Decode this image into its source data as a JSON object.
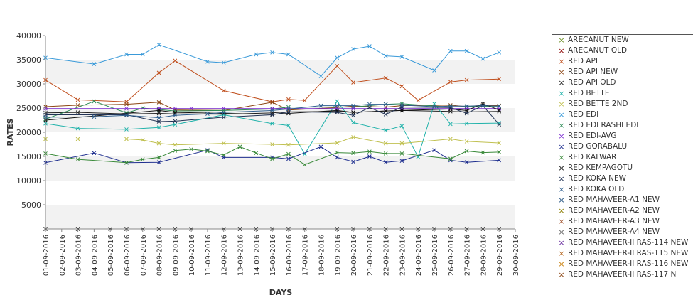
{
  "chart_data": {
    "type": "line",
    "xlabel": "DAYS",
    "ylabel": "RATES",
    "ylim": [
      0,
      40000
    ],
    "yticks": [
      5000,
      10000,
      15000,
      20000,
      25000,
      30000,
      35000,
      40000
    ],
    "x": [
      "01-09-2016",
      "02-09-2016",
      "03-09-2016",
      "04-09-2016",
      "05-09-2016",
      "06-09-2016",
      "07-09-2016",
      "08-09-2016",
      "09-09-2016",
      "10-09-2016",
      "11-09-2016",
      "12-09-2016",
      "13-09-2016",
      "14-09-2016",
      "15-09-2016",
      "16-09-2016",
      "17-09-2016",
      "18-09-2016",
      "19-09-2016",
      "20-09-2016",
      "21-09-2016",
      "22-09-2016",
      "23-09-2016",
      "24-09-2016",
      "25-09-2016",
      "26-09-2016",
      "27-09-2016",
      "28-09-2016",
      "29-09-2016",
      "30-09-2016"
    ],
    "series": [
      {
        "name": "ARECANUT NEW",
        "color": "#6b8e23",
        "values": [
          0,
          null,
          0,
          null,
          0,
          0,
          0,
          0,
          0,
          0,
          null,
          0,
          0,
          0,
          0,
          0,
          0,
          null,
          0,
          0,
          0,
          0,
          0,
          0,
          0,
          0,
          0,
          0,
          0,
          null
        ]
      },
      {
        "name": "ARECANUT OLD",
        "color": "#8b0000",
        "values": [
          0,
          null,
          0,
          null,
          0,
          0,
          0,
          0,
          0,
          0,
          null,
          0,
          0,
          0,
          0,
          0,
          0,
          null,
          0,
          0,
          0,
          0,
          0,
          0,
          0,
          0,
          0,
          0,
          0,
          null
        ]
      },
      {
        "name": "RED API",
        "color": "#c0501f",
        "values": [
          30800,
          null,
          26700,
          null,
          null,
          26300,
          null,
          32300,
          34800,
          null,
          null,
          28600,
          null,
          null,
          26300,
          26800,
          26600,
          null,
          33700,
          30300,
          null,
          31200,
          29500,
          26600,
          null,
          30400,
          30800,
          null,
          31000,
          null
        ]
      },
      {
        "name": "RED API NEW",
        "color": "#8b4513",
        "values": [
          25300,
          null,
          25600,
          null,
          null,
          25800,
          null,
          26200,
          24600,
          null,
          null,
          24500,
          null,
          null,
          26200,
          24600,
          null,
          null,
          25100,
          25400,
          null,
          25200,
          25500,
          null,
          null,
          25600,
          25300,
          25600,
          25500,
          null
        ]
      },
      {
        "name": "RED API OLD",
        "color": "#222222",
        "values": [
          24000,
          null,
          24100,
          null,
          null,
          23800,
          null,
          23900,
          23800,
          null,
          null,
          23700,
          null,
          null,
          24000,
          24200,
          null,
          null,
          24300,
          24100,
          null,
          24400,
          24500,
          null,
          null,
          24300,
          24200,
          null,
          24300,
          null
        ]
      },
      {
        "name": "RED BETTE",
        "color": "#20b2aa",
        "values": [
          21800,
          null,
          20800,
          null,
          null,
          20600,
          null,
          21000,
          21600,
          null,
          null,
          23600,
          null,
          null,
          21800,
          21400,
          15500,
          null,
          26400,
          22000,
          null,
          20400,
          21300,
          14900,
          25900,
          21700,
          21800,
          null,
          21900,
          null
        ]
      },
      {
        "name": "RED BETTE 2ND",
        "color": "#c0c050",
        "values": [
          18600,
          null,
          18600,
          null,
          null,
          18600,
          18400,
          17700,
          17400,
          null,
          null,
          17700,
          null,
          null,
          17500,
          17400,
          null,
          null,
          17800,
          19000,
          null,
          17700,
          17700,
          null,
          null,
          18600,
          18100,
          null,
          17800,
          null
        ]
      },
      {
        "name": "RED EDI",
        "color": "#3a9ad9",
        "values": [
          35400,
          null,
          null,
          34100,
          null,
          36100,
          36100,
          38100,
          null,
          null,
          34600,
          34400,
          null,
          36100,
          36500,
          36100,
          null,
          31600,
          35400,
          37200,
          37800,
          35800,
          35600,
          null,
          32800,
          36800,
          36800,
          35200,
          36500,
          null
        ]
      },
      {
        "name": "RED EDI RASHI EDI",
        "color": "#2e8b57",
        "values": [
          22700,
          null,
          null,
          26400,
          null,
          24000,
          25000,
          24700,
          24400,
          null,
          null,
          24500,
          null,
          null,
          24800,
          25200,
          null,
          null,
          null,
          25200,
          null,
          25800,
          25900,
          null,
          null,
          25200,
          25300,
          null,
          25400,
          null
        ]
      },
      {
        "name": "RED EDI-AVG",
        "color": "#7b2bd0",
        "values": [
          24900,
          null,
          null,
          null,
          null,
          24900,
          null,
          24900,
          24900,
          24900,
          null,
          24900,
          null,
          null,
          24900,
          24900,
          null,
          null,
          24900,
          24900,
          null,
          24900,
          24900,
          null,
          null,
          24900,
          24900,
          null,
          24900,
          null
        ]
      },
      {
        "name": "RED GORABALU",
        "color": "#1f2f8f",
        "values": [
          13700,
          null,
          null,
          15700,
          null,
          13700,
          null,
          13800,
          null,
          null,
          16300,
          14800,
          null,
          null,
          14800,
          14500,
          null,
          17000,
          14800,
          13900,
          15000,
          13800,
          14100,
          null,
          16300,
          14200,
          13800,
          null,
          14200,
          null
        ]
      },
      {
        "name": "RED KALWAR",
        "color": "#3a8a3a",
        "values": [
          15600,
          null,
          14400,
          null,
          null,
          13700,
          14400,
          14800,
          16200,
          16500,
          16100,
          15300,
          17000,
          15700,
          14500,
          15500,
          13300,
          null,
          15800,
          15700,
          16000,
          15600,
          15600,
          null,
          null,
          14500,
          16100,
          15800,
          15900,
          null
        ]
      },
      {
        "name": "RED KEMPAGOTU",
        "color": "#111111",
        "values": [
          22500,
          null,
          null,
          null,
          null,
          null,
          null,
          24500,
          24100,
          null,
          null,
          23900,
          null,
          null,
          23700,
          23900,
          null,
          null,
          24500,
          24100,
          null,
          24400,
          24500,
          null,
          null,
          24800,
          24500,
          25900,
          24600,
          null
        ]
      },
      {
        "name": "RED KOKA NEW",
        "color": "#223355",
        "values": [
          23600,
          null,
          null,
          null,
          null,
          23600,
          null,
          22200,
          22300,
          null,
          null,
          23100,
          null,
          null,
          23600,
          24200,
          null,
          null,
          24100,
          23500,
          25100,
          23700,
          25200,
          null,
          null,
          25100,
          23900,
          25500,
          21600,
          null
        ]
      },
      {
        "name": "RED KOKA OLD",
        "color": "#2f5f8f",
        "values": [
          23100,
          null,
          null,
          23200,
          null,
          23500,
          null,
          23000,
          23500,
          null,
          23800,
          24100,
          null,
          null,
          24500,
          24800,
          null,
          25500,
          25500,
          25500,
          25800,
          25800,
          25600,
          null,
          25300,
          25400,
          25400,
          25500,
          25400,
          null
        ]
      }
    ]
  },
  "legend": [
    {
      "label": "ARECANUT NEW",
      "color": "#6b8e23"
    },
    {
      "label": "ARECANUT OLD",
      "color": "#8b0000"
    },
    {
      "label": "RED API",
      "color": "#c0501f"
    },
    {
      "label": "RED API NEW",
      "color": "#8b4513"
    },
    {
      "label": "RED API OLD",
      "color": "#222222"
    },
    {
      "label": "RED BETTE",
      "color": "#20b2aa"
    },
    {
      "label": "RED BETTE 2ND",
      "color": "#c0c050"
    },
    {
      "label": "RED EDI",
      "color": "#3a9ad9"
    },
    {
      "label": "RED EDI RASHI EDI",
      "color": "#2e8b57"
    },
    {
      "label": "RED EDI-AVG",
      "color": "#7b2bd0"
    },
    {
      "label": "RED GORABALU",
      "color": "#1f2f8f"
    },
    {
      "label": "RED KALWAR",
      "color": "#3a8a3a"
    },
    {
      "label": "RED KEMPAGOTU",
      "color": "#111111"
    },
    {
      "label": "RED KOKA NEW",
      "color": "#223355"
    },
    {
      "label": "RED KOKA OLD",
      "color": "#2f5f8f"
    },
    {
      "label": "RED MAHAVEER-A1 NEW",
      "color": "#1f4f7f"
    },
    {
      "label": "RED MAHAVEER-A2 NEW",
      "color": "#8b7d00"
    },
    {
      "label": "RED MAHAVEER-A3 NEW",
      "color": "#a0522d"
    },
    {
      "label": "RED MAHAVEER-A4 NEW",
      "color": "#666666"
    },
    {
      "label": "RED MAHAVEER-II RAS-114 NEW",
      "color": "#6a2fa0"
    },
    {
      "label": "RED MAHAVEER-II RAS-115 NEW",
      "color": "#b5651d"
    },
    {
      "label": "RED MAHAVEER-II RAS-116 NEW",
      "color": "#c87f0a"
    },
    {
      "label": "RED MAHAVEER-II RAS-117 N",
      "color": "#8b4513"
    }
  ]
}
